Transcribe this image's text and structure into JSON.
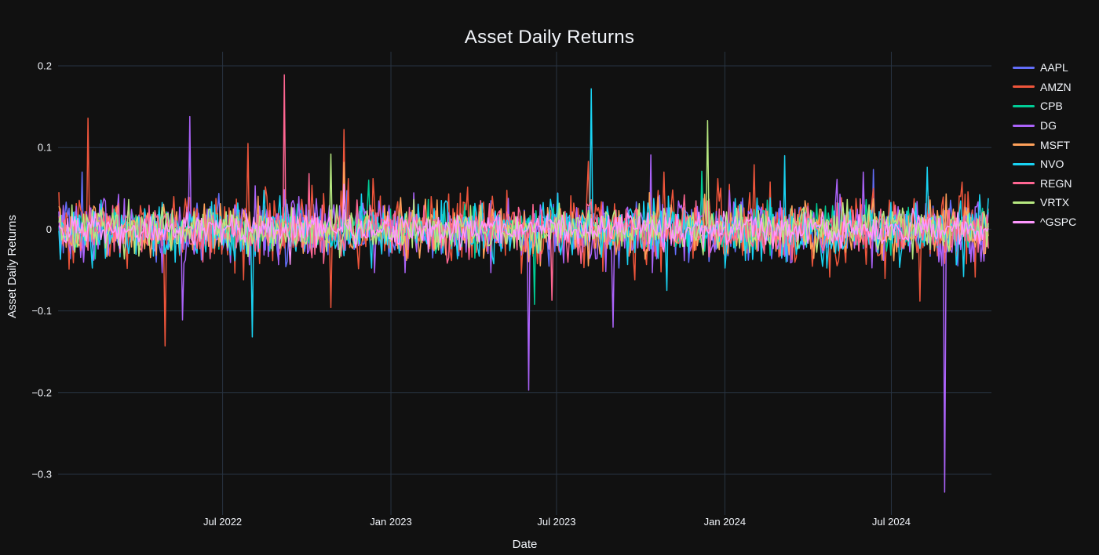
{
  "chart_data": {
    "type": "line",
    "title": "Asset Daily Returns",
    "xlabel": "Date",
    "ylabel": "Asset Daily Returns",
    "x_range": [
      "2022-01-03",
      "2024-10-15"
    ],
    "y_range": [
      -0.34,
      0.217
    ],
    "grid": true,
    "legend_position": "right",
    "points_per_series": 640,
    "y_ticks": [
      {
        "label": "0.2",
        "v": 0.2
      },
      {
        "label": "0.1",
        "v": 0.1
      },
      {
        "label": "0",
        "v": 0.0
      },
      {
        "label": "−0.1",
        "v": -0.1
      },
      {
        "label": "−0.2",
        "v": -0.2
      },
      {
        "label": "−0.3",
        "v": -0.3
      }
    ],
    "x_ticks": [
      {
        "label": "Jul 2022",
        "date": "2022-07-01"
      },
      {
        "label": "Jan 2023",
        "date": "2023-01-01"
      },
      {
        "label": "Jul 2023",
        "date": "2023-07-01"
      },
      {
        "label": "Jan 2024",
        "date": "2024-01-01"
      },
      {
        "label": "Jul 2024",
        "date": "2024-07-01"
      }
    ],
    "series": [
      {
        "name": "AAPL",
        "color": "#636EFA",
        "daily_volatility": 0.017,
        "seed": 101,
        "notable_moves": [
          {
            "date": "2022-01-28",
            "r": 0.07
          },
          {
            "date": "2024-06-11",
            "r": 0.073
          }
        ]
      },
      {
        "name": "AMZN",
        "color": "#EF553B",
        "daily_volatility": 0.023,
        "seed": 202,
        "notable_moves": [
          {
            "date": "2022-02-04",
            "r": 0.136
          },
          {
            "date": "2022-04-29",
            "r": -0.143
          },
          {
            "date": "2022-07-29",
            "r": 0.105
          },
          {
            "date": "2022-10-28",
            "r": -0.096
          },
          {
            "date": "2022-11-10",
            "r": 0.122
          },
          {
            "date": "2023-08-04",
            "r": 0.083
          },
          {
            "date": "2023-10-27",
            "r": 0.07
          },
          {
            "date": "2024-02-02",
            "r": 0.079
          },
          {
            "date": "2024-08-02",
            "r": -0.088
          }
        ]
      },
      {
        "name": "CPB",
        "color": "#00CC96",
        "daily_volatility": 0.013,
        "seed": 303,
        "notable_moves": [
          {
            "date": "2022-12-07",
            "r": 0.06
          },
          {
            "date": "2023-06-07",
            "r": -0.092
          },
          {
            "date": "2023-12-06",
            "r": 0.071
          }
        ]
      },
      {
        "name": "DG",
        "color": "#AB63FA",
        "daily_volatility": 0.019,
        "seed": 404,
        "notable_moves": [
          {
            "date": "2022-05-18",
            "r": -0.111
          },
          {
            "date": "2022-05-26",
            "r": 0.138
          },
          {
            "date": "2023-06-01",
            "r": -0.197
          },
          {
            "date": "2023-08-31",
            "r": -0.12
          },
          {
            "date": "2023-10-12",
            "r": 0.091
          },
          {
            "date": "2024-05-03",
            "r": 0.061
          },
          {
            "date": "2024-05-31",
            "r": 0.07
          },
          {
            "date": "2024-08-29",
            "r": -0.322
          }
        ]
      },
      {
        "name": "MSFT",
        "color": "#FFA15A",
        "daily_volatility": 0.016,
        "seed": 505,
        "notable_moves": [
          {
            "date": "2022-11-10",
            "r": 0.082
          }
        ]
      },
      {
        "name": "NVO",
        "color": "#19D3F3",
        "daily_volatility": 0.017,
        "seed": 606,
        "notable_moves": [
          {
            "date": "2022-08-02",
            "r": -0.132
          },
          {
            "date": "2023-08-08",
            "r": 0.172
          },
          {
            "date": "2023-10-30",
            "r": -0.075
          },
          {
            "date": "2024-03-07",
            "r": 0.09
          },
          {
            "date": "2024-08-09",
            "r": 0.076
          },
          {
            "date": "2024-09-18",
            "r": -0.058
          }
        ]
      },
      {
        "name": "REGN",
        "color": "#FF6692",
        "daily_volatility": 0.015,
        "seed": 707,
        "notable_moves": [
          {
            "date": "2022-09-06",
            "r": 0.189
          },
          {
            "date": "2022-10-03",
            "r": 0.068
          },
          {
            "date": "2023-06-26",
            "r": -0.087
          }
        ]
      },
      {
        "name": "VRTX",
        "color": "#B6E880",
        "daily_volatility": 0.013,
        "seed": 808,
        "notable_moves": [
          {
            "date": "2022-10-27",
            "r": 0.092
          },
          {
            "date": "2023-12-13",
            "r": 0.133
          }
        ]
      },
      {
        "name": "^GSPC",
        "color": "#FF97FF",
        "daily_volatility": 0.01,
        "seed": 909,
        "notable_moves": [
          {
            "date": "2022-09-13",
            "r": -0.043
          },
          {
            "date": "2022-11-10",
            "r": 0.055
          }
        ]
      }
    ]
  },
  "colors": {
    "background": "#111111",
    "plot_background": "#111111",
    "gridline": "#283442",
    "text": "#f2f5fa"
  }
}
